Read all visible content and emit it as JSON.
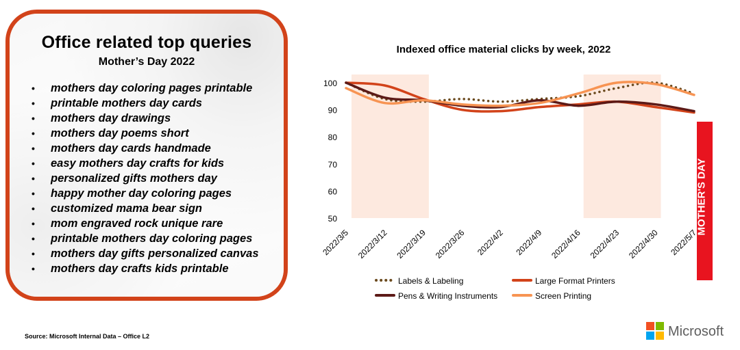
{
  "panel": {
    "title": "Office related top queries",
    "subtitle": "Mother’s Day 2022",
    "queries": [
      "mothers day coloring pages printable",
      "printable mothers day cards",
      "mothers day drawings",
      "mothers day poems short",
      "mothers day cards handmade",
      "easy mothers day crafts for kids",
      "personalized gifts mothers day",
      "happy mother day coloring pages",
      "customized mama bear sign",
      "mom engraved rock unique rare",
      "printable mothers day coloring pages",
      "mothers day gifts personalized canvas",
      "mothers day crafts kids printable"
    ]
  },
  "chart_data": {
    "type": "line",
    "title": "Indexed office material clicks by week, 2022",
    "categories": [
      "2022/3/5",
      "2022/3/12",
      "2022/3/19",
      "2022/3/26",
      "2022/4/2",
      "2022/4/9",
      "2022/4/16",
      "2022/4/23",
      "2022/4/30",
      "2022/5/7"
    ],
    "y_ticks": [
      50,
      60,
      70,
      80,
      90,
      100
    ],
    "ylim": [
      50,
      100
    ],
    "highlight_bands": [
      {
        "from": "2022/3/5",
        "to": "2022/3/19"
      },
      {
        "from": "2022/4/16",
        "to": "2022/4/30"
      }
    ],
    "annotation": "MOTHER'S DAY",
    "annotation_color": "#e8141f",
    "band_color": "#fde9df",
    "series": [
      {
        "name": "Labels & Labeling",
        "color": "#6b4a1e",
        "style": "dotted",
        "values": [
          100,
          94,
          93,
          94,
          93,
          94,
          95,
          98,
          100,
          96
        ]
      },
      {
        "name": "Large Format Printers",
        "color": "#d2431a",
        "style": "solid",
        "values": [
          100,
          99,
          94,
          90,
          89.5,
          91,
          92,
          93,
          91,
          89
        ]
      },
      {
        "name": "Pens & Writing Instruments",
        "color": "#5c1a17",
        "style": "solid",
        "values": [
          100,
          94.5,
          93.5,
          91.5,
          91,
          93.5,
          91.5,
          93,
          92,
          89.5
        ]
      },
      {
        "name": "Screen Printing",
        "color": "#f79453",
        "style": "solid",
        "values": [
          98,
          92.5,
          93.5,
          92,
          91.5,
          92.5,
          96,
          100,
          99.5,
          95.5
        ]
      }
    ]
  },
  "footer": {
    "source": "Source: Microsoft Internal Data – Office L2"
  },
  "brand": {
    "name": "Microsoft",
    "logo_colors": [
      "#f25022",
      "#7fba00",
      "#00a4ef",
      "#ffb900"
    ]
  }
}
